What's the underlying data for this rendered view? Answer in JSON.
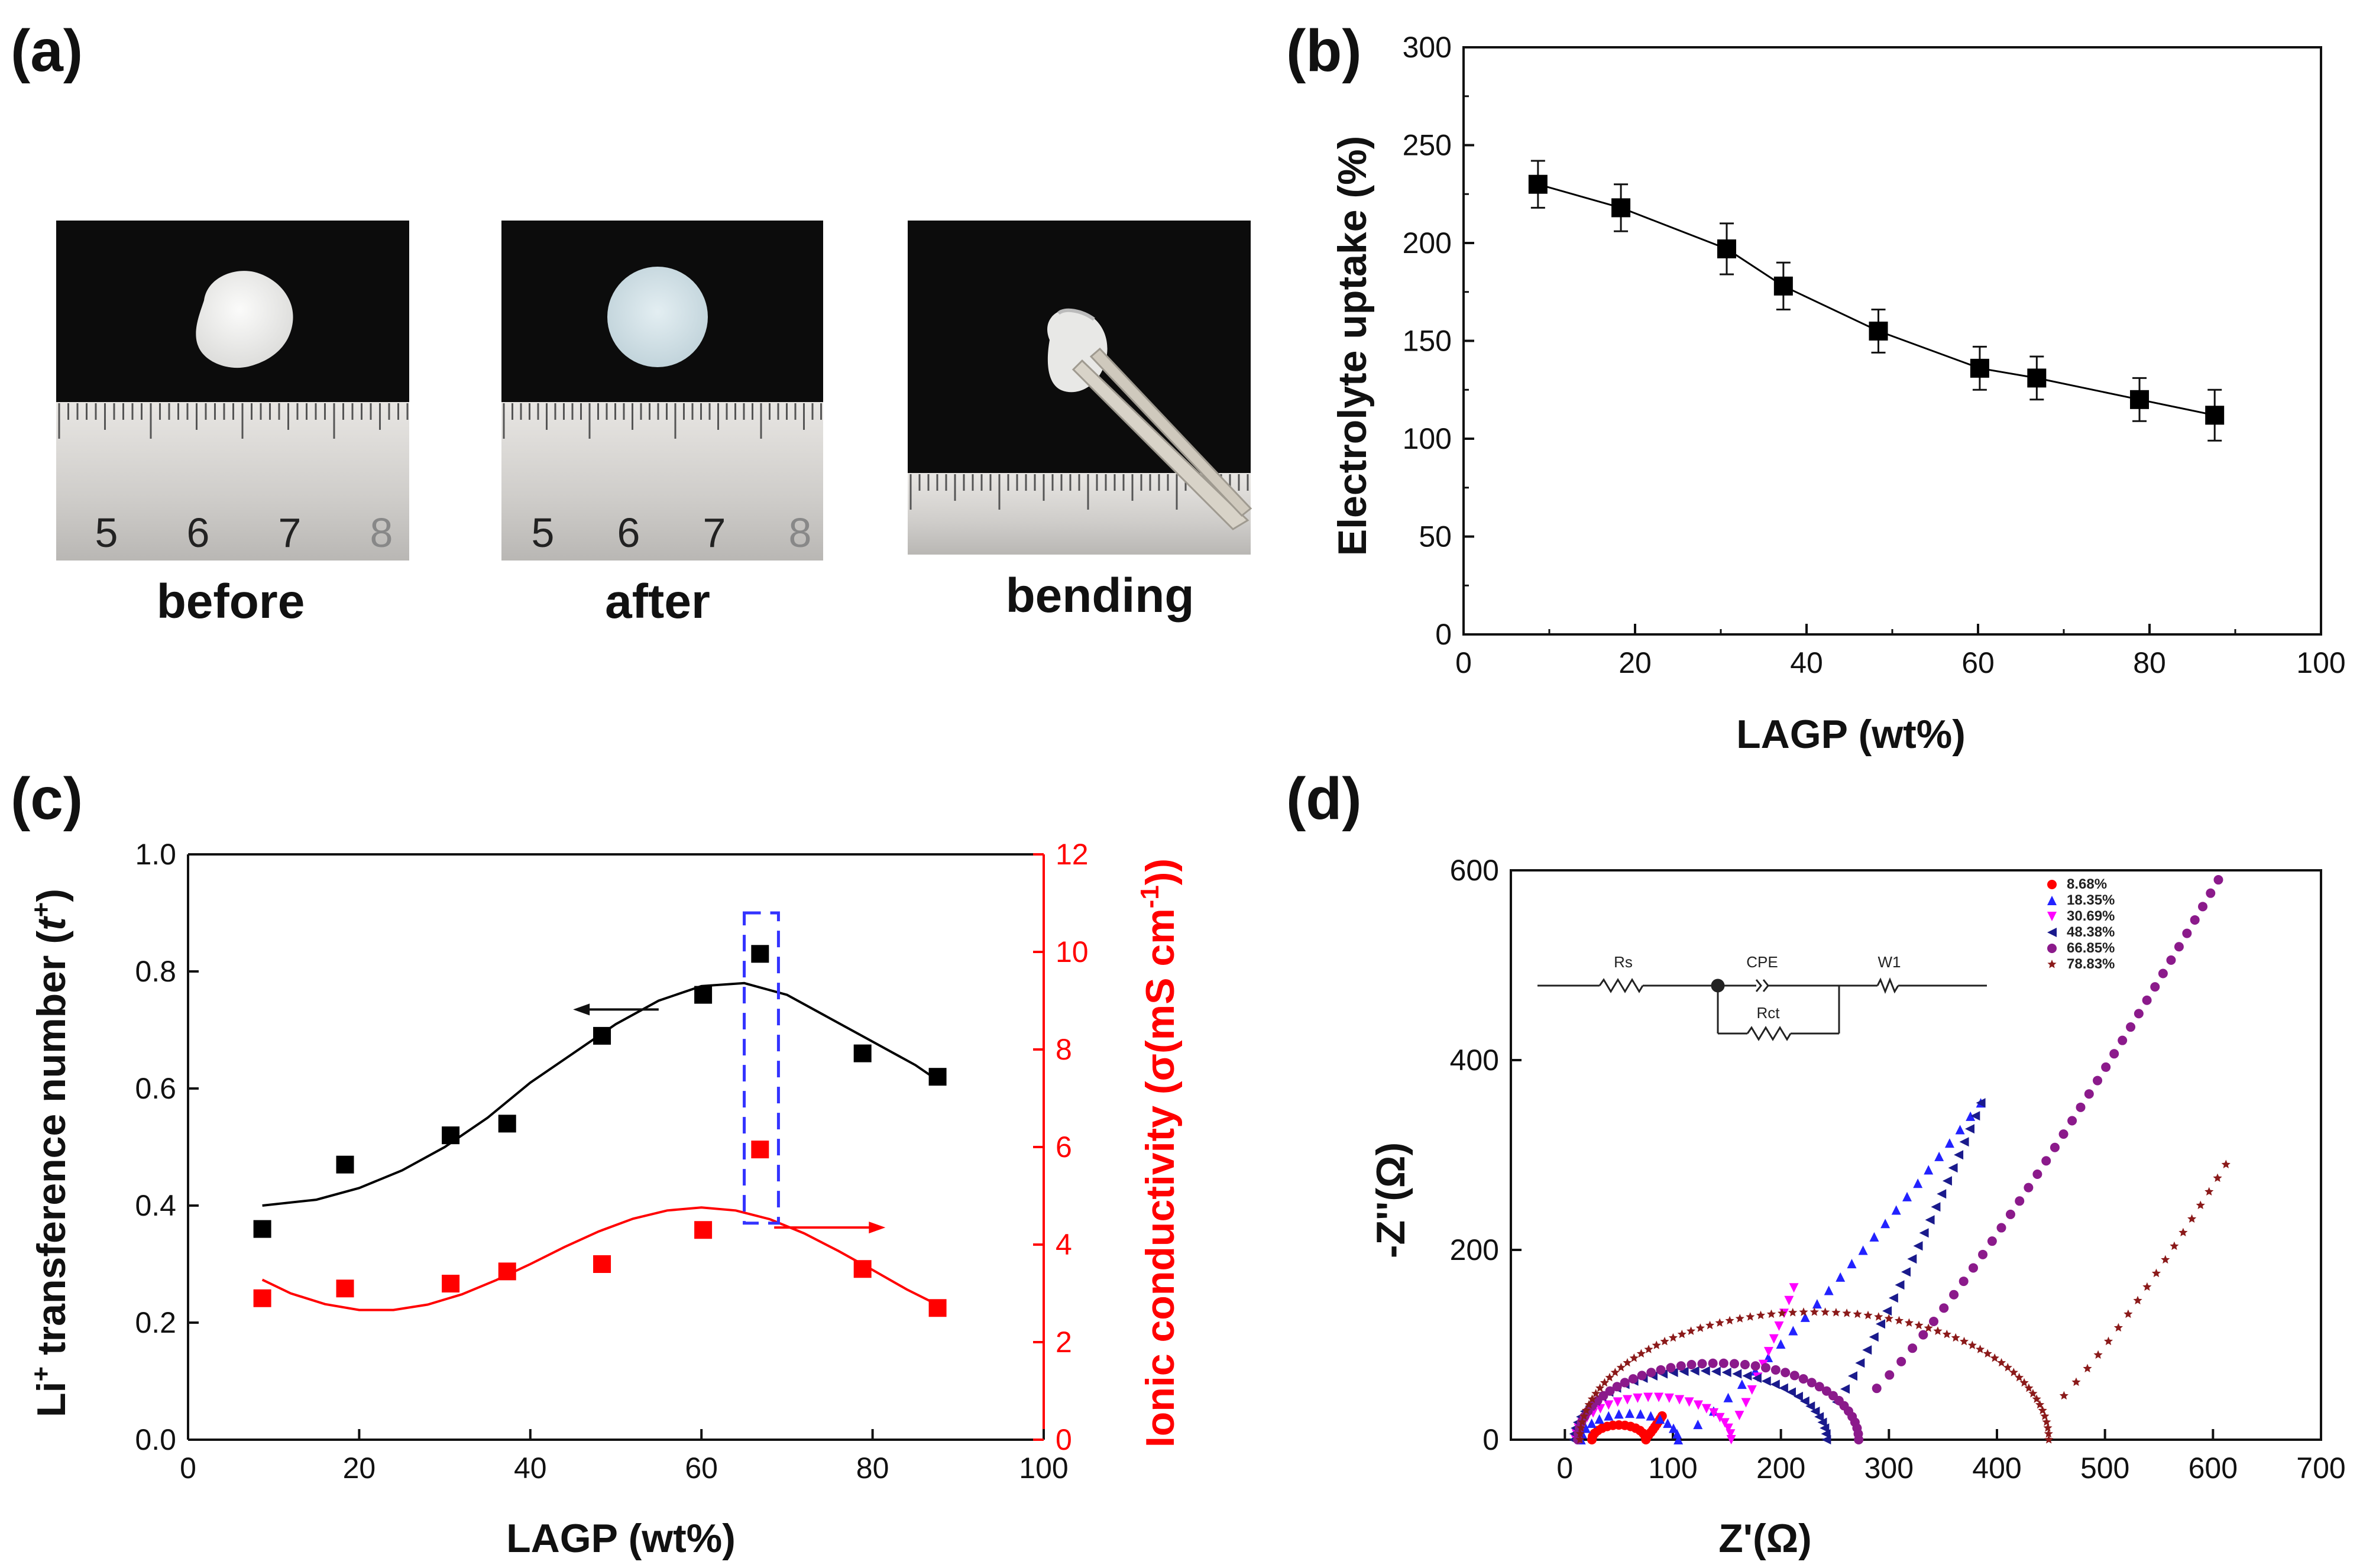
{
  "panels": {
    "a": {
      "label": "(a)",
      "captions": [
        "before",
        "after",
        "bending"
      ],
      "ruler_numbers": [
        "5",
        "6",
        "7",
        "8"
      ]
    },
    "b": {
      "label": "(b)"
    },
    "c": {
      "label": "(c)"
    },
    "d": {
      "label": "(d)"
    }
  },
  "chart_data": [
    {
      "id": "b",
      "type": "scatter",
      "title": "",
      "xlabel": "LAGP (wt%)",
      "ylabel": "Electrolyte uptake (%)",
      "xlim": [
        0,
        100
      ],
      "ylim": [
        0,
        300
      ],
      "xticks": [
        0,
        20,
        40,
        60,
        80,
        100
      ],
      "yticks": [
        0,
        50,
        100,
        150,
        200,
        250,
        300
      ],
      "series": [
        {
          "name": "Electrolyte uptake",
          "color": "#000000",
          "marker": "square",
          "connected": true,
          "x": [
            8.68,
            18.35,
            30.69,
            37.3,
            48.38,
            60.2,
            66.85,
            78.83,
            87.6
          ],
          "y": [
            230,
            218,
            197,
            178,
            155,
            136,
            131,
            120,
            112
          ],
          "err": [
            12,
            12,
            13,
            12,
            11,
            11,
            11,
            11,
            13
          ]
        }
      ]
    },
    {
      "id": "c",
      "type": "scatter",
      "title": "",
      "xlabel": "LAGP (wt%)",
      "ylabel_left": "Li⁺ transference number (t⁺)",
      "ylabel_left_main": "Li",
      "ylabel_left_sup": "+",
      "ylabel_left_rest": " transference number (",
      "ylabel_left_t": "t",
      "ylabel_left_tsup": "+",
      "ylabel_left_end": ")",
      "ylabel_right": "Ionic conductivity (σ(mS cm⁻¹))",
      "ylabel_right_main": "Ionic conductivity (σ(mS cm",
      "ylabel_right_sup": "-1",
      "ylabel_right_end": "))",
      "xlim": [
        0,
        100
      ],
      "ylim_left": [
        0.0,
        1.0
      ],
      "ylim_right": [
        0,
        12
      ],
      "xticks": [
        0,
        20,
        40,
        60,
        80,
        100
      ],
      "yticks_left": [
        "0.0",
        "0.2",
        "0.4",
        "0.6",
        "0.8",
        "1.0"
      ],
      "yticks_right": [
        0,
        2,
        4,
        6,
        8,
        10,
        12
      ],
      "series": [
        {
          "name": "Li+ transference number",
          "axis": "left",
          "color": "#000000",
          "x": [
            8.68,
            18.35,
            30.69,
            37.3,
            48.38,
            60.2,
            66.85,
            78.83,
            87.6
          ],
          "y": [
            0.36,
            0.47,
            0.52,
            0.54,
            0.69,
            0.76,
            0.83,
            0.66,
            0.62
          ],
          "fit": {
            "x": [
              8.68,
              15,
              20,
              25,
              30,
              35,
              40,
              45,
              50,
              55,
              60,
              65,
              70,
              75,
              80,
              85,
              88
            ],
            "y": [
              0.4,
              0.41,
              0.43,
              0.46,
              0.5,
              0.55,
              0.61,
              0.66,
              0.71,
              0.75,
              0.775,
              0.78,
              0.76,
              0.72,
              0.68,
              0.64,
              0.61
            ]
          }
        },
        {
          "name": "Ionic conductivity",
          "axis": "right",
          "color": "#ff0000",
          "x": [
            8.68,
            18.35,
            30.69,
            37.3,
            48.38,
            60.2,
            66.85,
            78.83,
            87.6
          ],
          "y": [
            2.9,
            3.1,
            3.2,
            3.45,
            3.6,
            4.3,
            5.95,
            3.5,
            2.7
          ],
          "fit": {
            "x": [
              8.68,
              12,
              16,
              20,
              24,
              28,
              32,
              36,
              40,
              44,
              48,
              52,
              56,
              60,
              64,
              68,
              72,
              76,
              80,
              84,
              88
            ],
            "y": [
              3.28,
              3.0,
              2.78,
              2.66,
              2.66,
              2.77,
              2.98,
              3.27,
              3.6,
              3.95,
              4.27,
              4.53,
              4.7,
              4.76,
              4.7,
              4.52,
              4.23,
              3.87,
              3.48,
              3.08,
              2.73
            ]
          }
        }
      ],
      "highlight_box": {
        "x_range": [
          65,
          69
        ],
        "y_range_left": [
          0.37,
          0.9
        ],
        "color": "#3333ff"
      },
      "arrows": [
        {
          "from_x": 55,
          "to_x": 45,
          "y_left": 0.735,
          "direction": "left"
        },
        {
          "from_x": 68.5,
          "to_x": 81.5,
          "y_right": 4.35,
          "direction": "right"
        }
      ]
    },
    {
      "id": "d",
      "type": "scatter",
      "title": "",
      "xlabel": "Z'(Ω)",
      "ylabel": "-Z''(Ω)",
      "xlim": [
        -50,
        700
      ],
      "ylim": [
        0,
        600
      ],
      "xticks": [
        0,
        100,
        200,
        300,
        400,
        500,
        600,
        700
      ],
      "yticks": [
        0,
        200,
        400,
        600
      ],
      "series": [
        {
          "name": "8.68%",
          "color": "#ff0000",
          "marker": "circle",
          "start": 25,
          "r1": 25,
          "tail": [
            [
              75,
              2
            ],
            [
              90,
              25
            ]
          ]
        },
        {
          "name": "18.35%",
          "color": "#2222ff",
          "marker": "triangle-up",
          "start": 15,
          "r1": 45,
          "tail": [
            [
              105,
              2
            ],
            [
              385,
              355
            ]
          ]
        },
        {
          "name": "30.69%",
          "color": "#ff00ff",
          "marker": "triangle-down",
          "start": 10,
          "r1": 72,
          "tail": [
            [
              154,
              12
            ],
            [
              212,
              160
            ]
          ]
        },
        {
          "name": "48.38%",
          "color": "#1a1a8c",
          "marker": "triangle-left",
          "start": 8,
          "r1": 117,
          "tail": [
            [
              242,
              26
            ],
            [
              385,
              355
            ]
          ]
        },
        {
          "name": "66.85%",
          "color": "#8b1a8b",
          "marker": "circle",
          "start": 12,
          "r1": 130,
          "tail": [
            [
              274,
              40
            ],
            [
              605,
              590
            ]
          ]
        },
        {
          "name": "78.83%",
          "color": "#8b1a1a",
          "marker": "star",
          "start": 14,
          "r1": 217,
          "tail": [
            [
              448,
              32
            ],
            [
              612,
              290
            ]
          ]
        }
      ],
      "legend_entries": [
        "8.68%",
        "18.35%",
        "30.69%",
        "48.38%",
        "66.85%",
        "78.83%"
      ],
      "circuit_labels": [
        "Rs",
        "CPE",
        "W1",
        "Rct"
      ],
      "legend_position": "top-right"
    }
  ]
}
